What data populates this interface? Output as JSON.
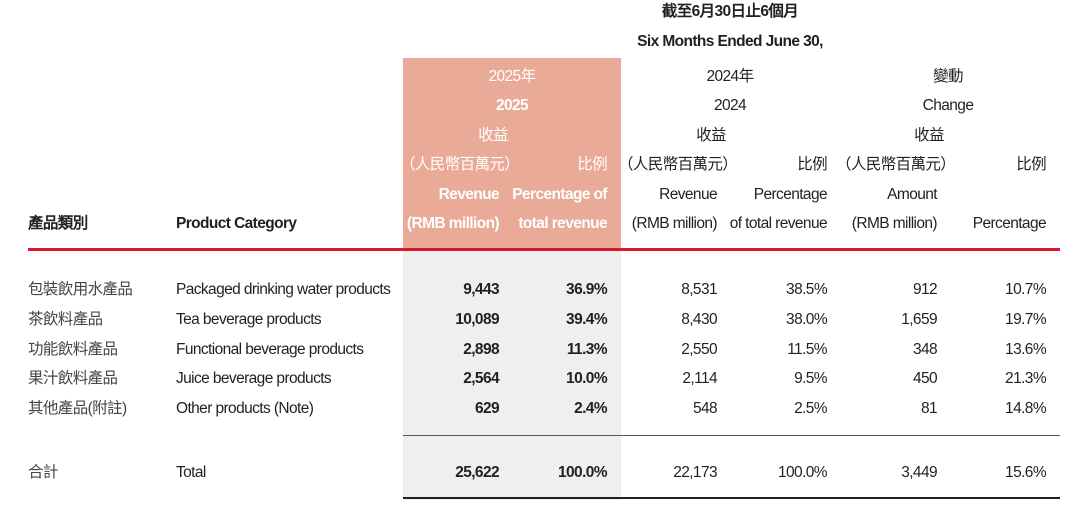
{
  "header": {
    "period_zh": "截至6月30日止6個月",
    "period_en": "Six Months Ended June 30,",
    "col_2025": {
      "year_zh": "2025年",
      "year_en": "2025",
      "rev_zh": "收益",
      "unit_zh": "（人民幣百萬元）",
      "pct_zh": "比例",
      "rev_en": "Revenue",
      "rev_unit_en": "(RMB million)",
      "pct_en_1": "Percentage of",
      "pct_en_2": "total revenue"
    },
    "col_2024": {
      "year_zh": "2024年",
      "year_en": "2024",
      "rev_zh": "收益",
      "unit_zh": "（人民幣百萬元）",
      "pct_zh": "比例",
      "rev_en": "Revenue",
      "rev_unit_en": "(RMB million)",
      "pct_en_1": "Percentage",
      "pct_en_2": "of total revenue"
    },
    "col_change": {
      "title_zh": "變動",
      "title_en": "Change",
      "rev_zh": "收益",
      "unit_zh": "（人民幣百萬元）",
      "pct_zh": "比例",
      "amt_en": "Amount",
      "amt_unit_en": "(RMB million)",
      "pct_en": "Percentage"
    },
    "category_zh": "產品類別",
    "category_en": "Product Category"
  },
  "rows": [
    {
      "zh": "包裝飲用水產品",
      "en": "Packaged drinking water products",
      "rev2025": "9,443",
      "pct2025": "36.9%",
      "rev2024": "8,531",
      "pct2024": "38.5%",
      "chg_amt": "912",
      "chg_pct": "10.7%"
    },
    {
      "zh": "茶飲料產品",
      "en": "Tea beverage products",
      "rev2025": "10,089",
      "pct2025": "39.4%",
      "rev2024": "8,430",
      "pct2024": "38.0%",
      "chg_amt": "1,659",
      "chg_pct": "19.7%"
    },
    {
      "zh": "功能飲料產品",
      "en": "Functional beverage products",
      "rev2025": "2,898",
      "pct2025": "11.3%",
      "rev2024": "2,550",
      "pct2024": "11.5%",
      "chg_amt": "348",
      "chg_pct": "13.6%"
    },
    {
      "zh": "果汁飲料產品",
      "en": "Juice beverage products",
      "rev2025": "2,564",
      "pct2025": "10.0%",
      "rev2024": "2,114",
      "pct2024": "9.5%",
      "chg_amt": "450",
      "chg_pct": "21.3%"
    },
    {
      "zh": "其他產品(附註)",
      "en": "Other products (Note)",
      "rev2025": "629",
      "pct2025": "2.4%",
      "rev2024": "548",
      "pct2024": "2.5%",
      "chg_amt": "81",
      "chg_pct": "14.8%"
    }
  ],
  "total": {
    "zh": "合計",
    "en": "Total",
    "rev2025": "25,622",
    "pct2025": "100.0%",
    "rev2024": "22,173",
    "pct2024": "100.0%",
    "chg_amt": "3,449",
    "chg_pct": "15.6%"
  },
  "colors": {
    "highlight": "#eaaa98",
    "rule": "#d7172f",
    "shade": "#efefef"
  }
}
